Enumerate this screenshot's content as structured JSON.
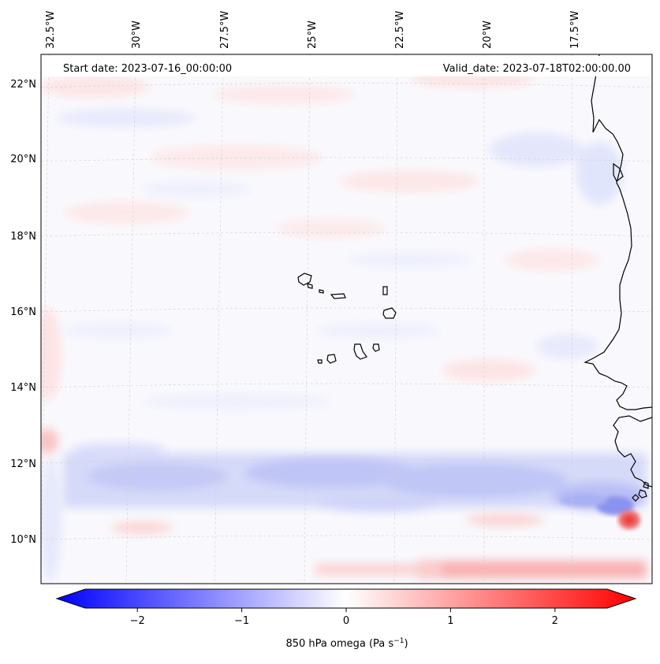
{
  "map": {
    "start_label": "Start date: 2023-07-16_00:00:00",
    "valid_label": "Valid_date: 2023-07-18T02:00:00.00",
    "lon_labels": [
      "32.5°W",
      "30°W",
      "27.5°W",
      "25°W",
      "22.5°W",
      "20°W",
      "17.5°W"
    ],
    "lat_labels": [
      "22°N",
      "20°N",
      "18°N",
      "16°N",
      "14°N",
      "12°N",
      "10°N"
    ],
    "coastline_color": "#000000",
    "gridline_color": "#cfcfcf"
  },
  "colorbar": {
    "label_prefix": "850 hPa omega (Pa s",
    "label_sup": "−1",
    "label_suffix": ")",
    "ticks": [
      "−2",
      "−1",
      "0",
      "1",
      "2"
    ],
    "tick_values": [
      -2,
      -1,
      0,
      1,
      2
    ],
    "range": [
      -2.6,
      2.6
    ],
    "neg_color": "#0000ff",
    "mid_color": "#ffffff",
    "pos_color": "#ff0000"
  },
  "features": [
    {
      "name": "cabo-verde-islands",
      "type": "coastline"
    },
    {
      "name": "west-africa-coast",
      "type": "coastline"
    }
  ],
  "omega_field": {
    "units": "Pa s-1",
    "bands": [
      {
        "name": "itcz-ascent-band",
        "lat_range": [
          10.5,
          12.5
        ],
        "approx_value": -0.6
      },
      {
        "name": "northern-weak-subsidence",
        "lat_range": [
          18,
          22
        ],
        "approx_value": 0.15
      },
      {
        "name": "coastal-ascent-core",
        "lat": 10.9,
        "lon": -16.5,
        "approx_value": -1.3
      },
      {
        "name": "coastal-descent-core",
        "lat": 10.4,
        "lon": -16.0,
        "approx_value": 1.6
      },
      {
        "name": "southern-descent-strip",
        "lat": 9.2,
        "approx_value": 0.6
      }
    ]
  }
}
